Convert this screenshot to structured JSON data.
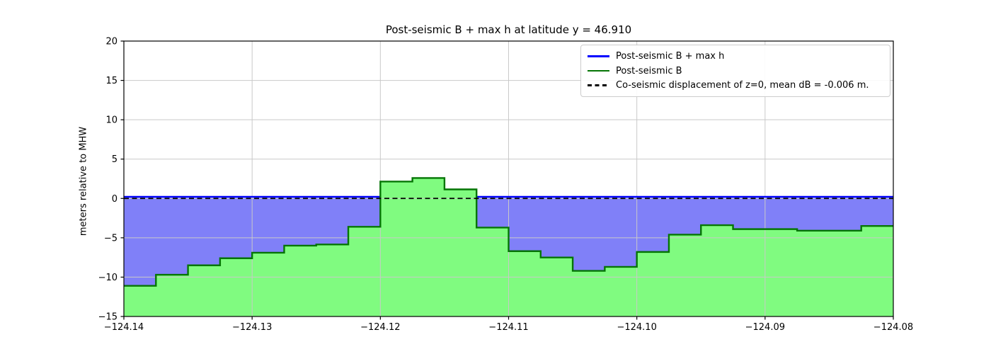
{
  "figure": {
    "background": "#ffffff"
  },
  "chart_data": {
    "type": "area",
    "title": "Post-seismic B + max h at latitude y = 46.910",
    "xlabel": "",
    "ylabel": "meters relative to MHW",
    "xlim": [
      -124.14,
      -124.08
    ],
    "ylim": [
      -15,
      20
    ],
    "grid": true,
    "grid_color": "#c9c9c9",
    "legend_position": "upper right",
    "xticks": {
      "values": [
        -124.14,
        -124.13,
        -124.12,
        -124.11,
        -124.1,
        -124.09,
        -124.08
      ],
      "labels": [
        "−124.14",
        "−124.13",
        "−124.12",
        "−124.11",
        "−124.10",
        "−124.09",
        "−124.08"
      ]
    },
    "yticks": {
      "values": [
        20,
        15,
        10,
        5,
        0,
        -5,
        -10,
        -15
      ],
      "labels": [
        "20",
        "15",
        "10",
        "5",
        "0",
        "−5",
        "−10",
        "−15"
      ]
    },
    "series": [
      {
        "name": "post-seismic-b-plus-max-h",
        "label": "Post-seismic B + max h",
        "type": "hline-with-fill-down-to-step",
        "value": 0.22,
        "line_style": "solid",
        "line_color": "#0000ff",
        "fill_color": "#8080f8"
      },
      {
        "name": "post-seismic-b",
        "label": "Post-seismic B",
        "type": "step-area",
        "baseline": -15,
        "line_style": "solid",
        "line_color": "#057505",
        "fill_color": "#80fb80",
        "edges": [
          -124.14,
          -124.1375,
          -124.135,
          -124.1325,
          -124.13,
          -124.1275,
          -124.125,
          -124.1225,
          -124.12,
          -124.1175,
          -124.115,
          -124.1125,
          -124.11,
          -124.1075,
          -124.105,
          -124.1025,
          -124.1,
          -124.0975,
          -124.095,
          -124.0925,
          -124.09,
          -124.0875,
          -124.085,
          -124.0825,
          -124.08
        ],
        "values": [
          -11.1,
          -9.7,
          -8.5,
          -7.6,
          -6.9,
          -6.0,
          -5.85,
          -3.6,
          2.15,
          2.6,
          1.15,
          -3.7,
          -6.7,
          -7.5,
          -9.2,
          -8.7,
          -6.8,
          -4.6,
          -3.4,
          -3.9,
          -3.9,
          -4.1,
          -4.1,
          -3.5
        ]
      },
      {
        "name": "co-seismic-displacement-z0",
        "label": "Co-seismic displacement of z=0, mean dB = -0.006 m.",
        "type": "hline",
        "value": 0.0,
        "line_style": "dashed",
        "line_color": "#000000"
      }
    ]
  }
}
